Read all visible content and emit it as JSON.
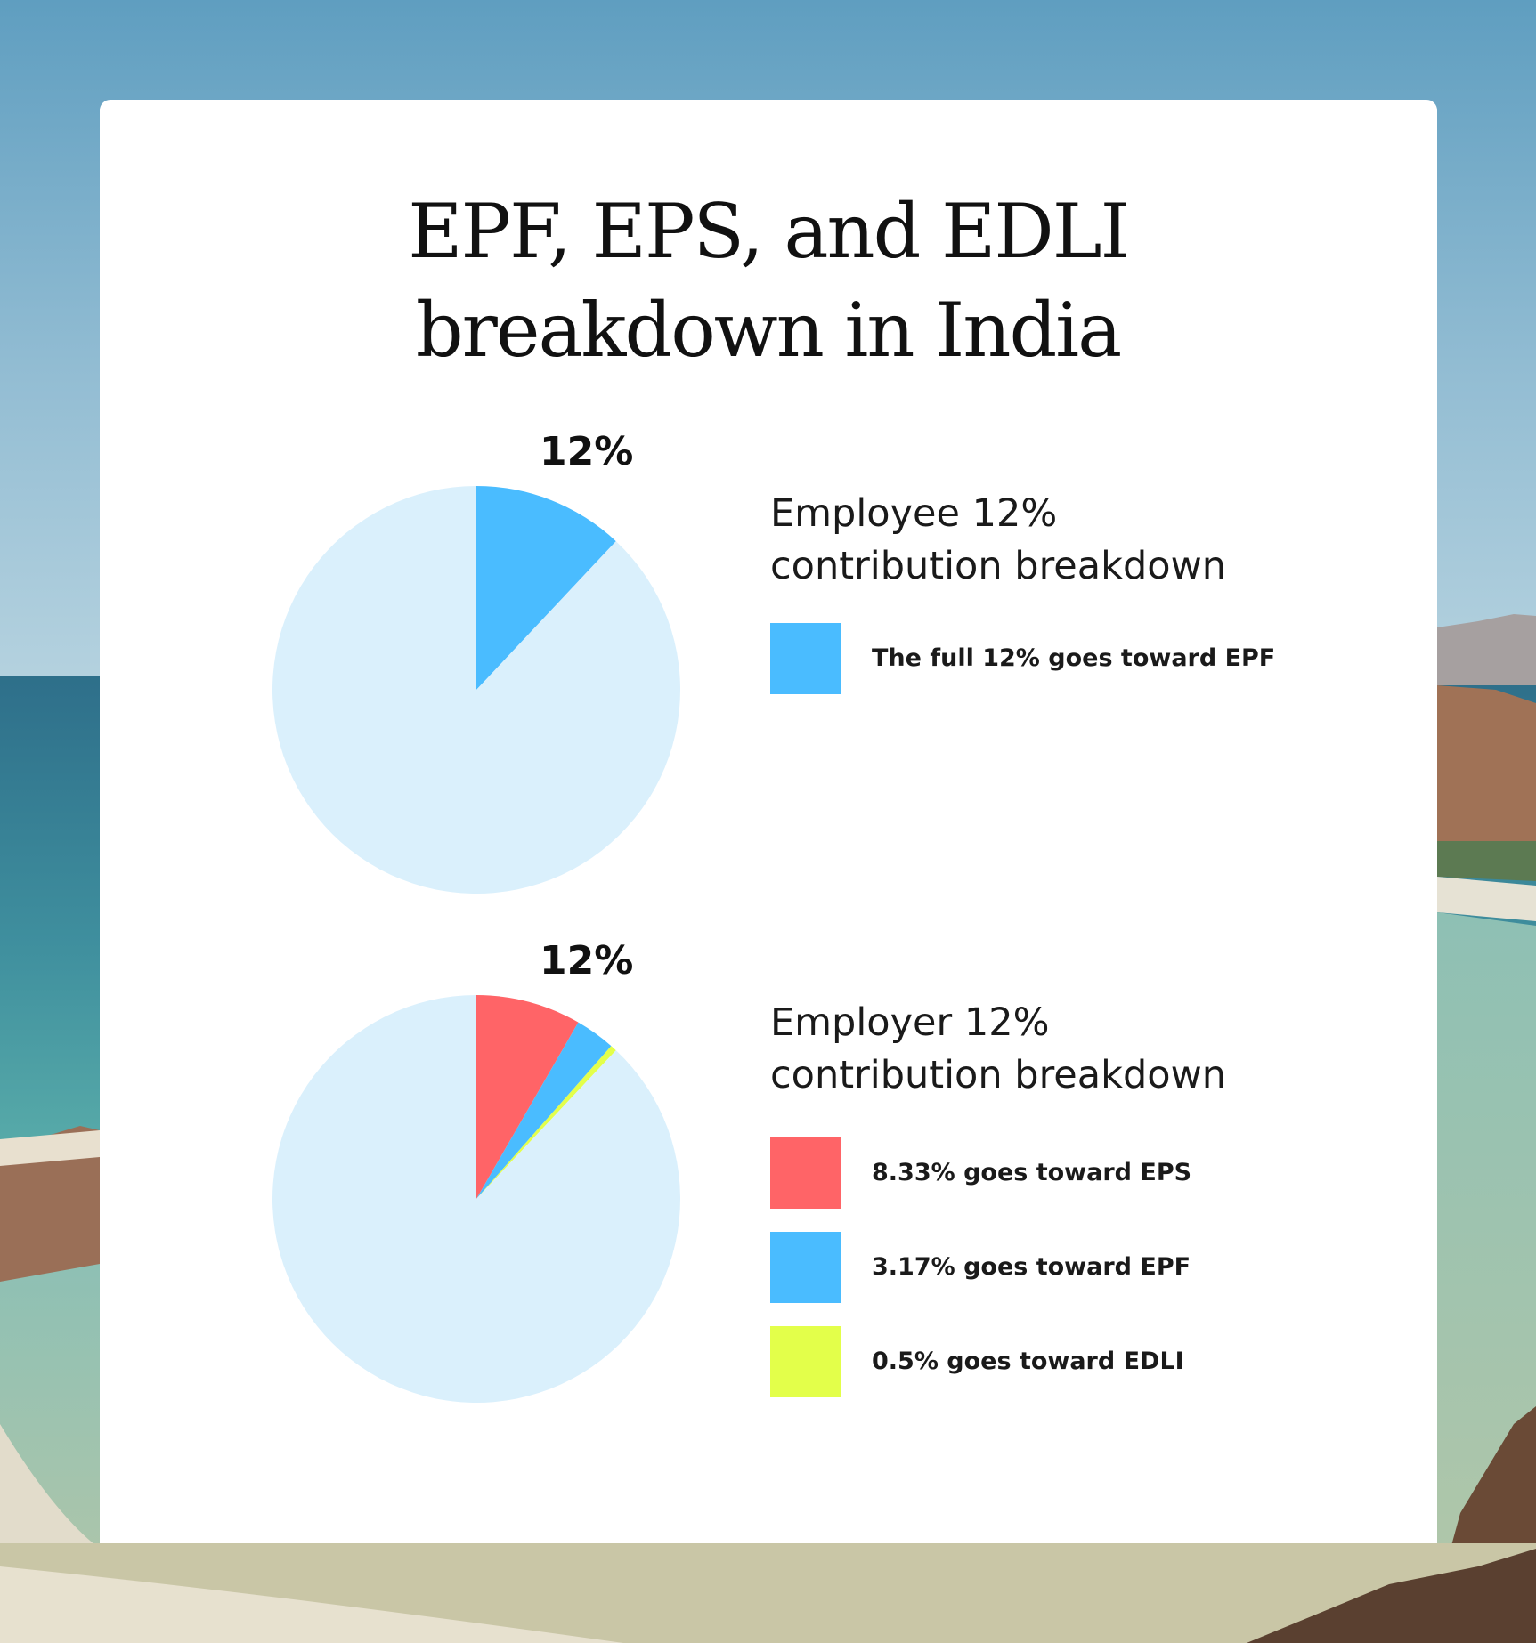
{
  "title": {
    "line1": "EPF, EPS, and EDLI",
    "line2": "breakdown in India"
  },
  "colors": {
    "pie_base": "#daf0fc",
    "epf": "#4abcff",
    "eps": "#ff6467",
    "edli": "#e3ff4a"
  },
  "chart_data": [
    {
      "type": "pie",
      "total_label": "12%",
      "title": "Employee 12% contribution breakdown",
      "slices": [
        {
          "label": "The full 12% goes toward EPF",
          "value": 12,
          "color": "#4abcff"
        },
        {
          "label": "",
          "value": 88,
          "color": "#daf0fc"
        }
      ]
    },
    {
      "type": "pie",
      "total_label": "12%",
      "title": "Employer 12% contribution breakdown",
      "slices": [
        {
          "label": "8.33% goes toward EPS",
          "value": 8.33,
          "color": "#ff6467"
        },
        {
          "label": "3.17% goes toward EPF",
          "value": 3.17,
          "color": "#4abcff"
        },
        {
          "label": "0.5% goes toward EDLI",
          "value": 0.5,
          "color": "#e3ff4a"
        },
        {
          "label": "",
          "value": 88,
          "color": "#daf0fc"
        }
      ]
    }
  ],
  "panels": [
    {
      "heading_line1": "Employee 12%",
      "heading_line2": "contribution breakdown",
      "legend": [
        {
          "label": "The full 12% goes toward EPF",
          "color": "#4abcff"
        }
      ]
    },
    {
      "heading_line1": "Employer 12%",
      "heading_line2": "contribution breakdown",
      "legend": [
        {
          "label": "8.33% goes toward EPS",
          "color": "#ff6467"
        },
        {
          "label": "3.17% goes toward EPF",
          "color": "#4abcff"
        },
        {
          "label": "0.5% goes toward EDLI",
          "color": "#e3ff4a"
        }
      ]
    }
  ]
}
